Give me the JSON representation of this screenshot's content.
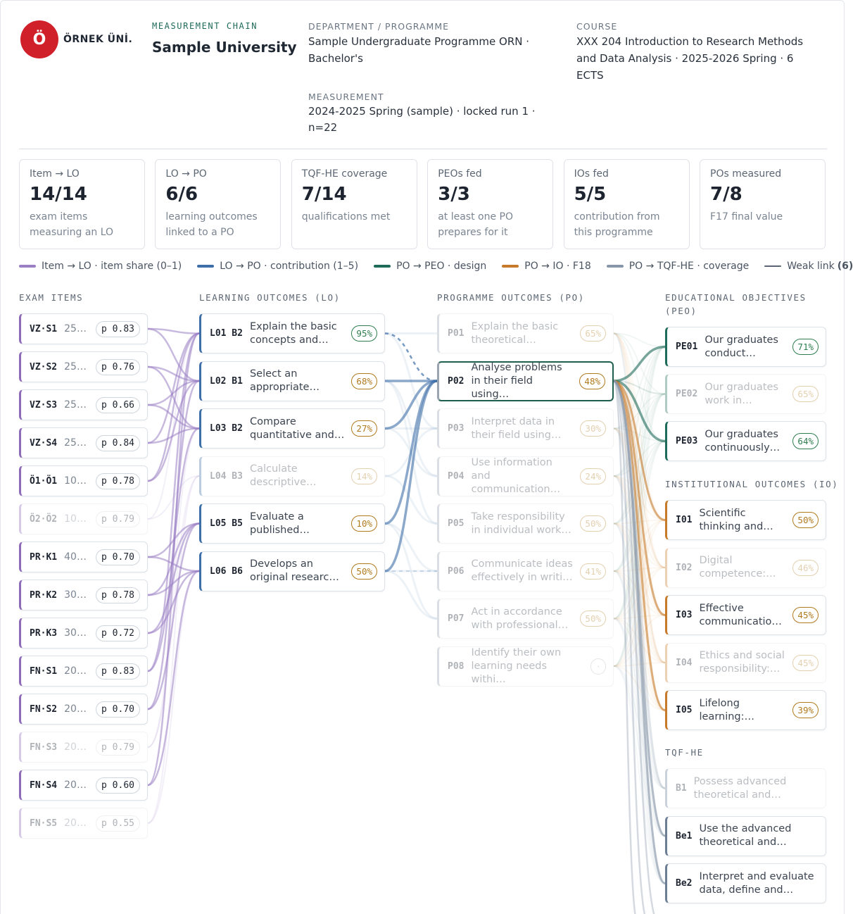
{
  "header": {
    "logo_letter": "Ö",
    "brand": "ÖRNEK ÜNİ.",
    "eyebrow": "MEASUREMENT CHAIN",
    "title": "Sample University",
    "department": {
      "label": "DEPARTMENT / PROGRAMME",
      "value": "Sample Undergraduate Programme ORN · Bachelor's"
    },
    "measurement": {
      "label": "MEASUREMENT",
      "value": "2024-2025 Spring (sample) · locked run 1 · n=22"
    },
    "course": {
      "label": "COURSE",
      "value": "XXX 204 Introduction to Research Methods and Data Analysis · 2025-2026 Spring · 6 ECTS"
    }
  },
  "stats": [
    {
      "label": "Item → LO",
      "value": "14/14",
      "note": "exam items measuring an LO"
    },
    {
      "label": "LO → PO",
      "value": "6/6",
      "note": "learning outcomes linked to a PO"
    },
    {
      "label": "TQF-HE coverage",
      "value": "7/14",
      "note": "qualifications met"
    },
    {
      "label": "PEOs fed",
      "value": "3/3",
      "note": "at least one PO prepares for it"
    },
    {
      "label": "IOs fed",
      "value": "5/5",
      "note": "contribution from this programme"
    },
    {
      "label": "POs measured",
      "value": "7/8",
      "note": "F17 final value"
    }
  ],
  "legend": [
    {
      "label": "Item → LO · item share (0–1)",
      "color": "#9b7fc4"
    },
    {
      "label": "LO → PO · contribution (1–5)",
      "color": "#3f6fa8"
    },
    {
      "label": "PO → PEO · design",
      "color": "#1f6b5a"
    },
    {
      "label": "PO → IO · F18",
      "color": "#c77a2a"
    },
    {
      "label": "PO → TQF-HE · coverage",
      "color": "#8796a8"
    },
    {
      "label": "Weak link",
      "count": "(6)",
      "color": "#5a6673"
    }
  ],
  "exam_items": {
    "heading": "EXAM ITEMS",
    "color": "#8e6bb8",
    "nodes": [
      {
        "code": "VZ·S1",
        "text": "25…",
        "badge": "p 0.83",
        "muted": false
      },
      {
        "code": "VZ·S2",
        "text": "25…",
        "badge": "p 0.76",
        "muted": false
      },
      {
        "code": "VZ·S3",
        "text": "25…",
        "badge": "p 0.66",
        "muted": false
      },
      {
        "code": "VZ·S4",
        "text": "25…",
        "badge": "p 0.84",
        "muted": false
      },
      {
        "code": "Ö1·Ö1",
        "text": "10…",
        "badge": "p 0.78",
        "muted": false
      },
      {
        "code": "Ö2·Ö2",
        "text": "10…",
        "badge": "p 0.79",
        "muted": true
      },
      {
        "code": "PR·K1",
        "text": "40…",
        "badge": "p 0.70",
        "muted": false
      },
      {
        "code": "PR·K2",
        "text": "30…",
        "badge": "p 0.78",
        "muted": false
      },
      {
        "code": "PR·K3",
        "text": "30…",
        "badge": "p 0.72",
        "muted": false
      },
      {
        "code": "FN·S1",
        "text": "20…",
        "badge": "p 0.83",
        "muted": false
      },
      {
        "code": "FN·S2",
        "text": "20…",
        "badge": "p 0.70",
        "muted": false
      },
      {
        "code": "FN·S3",
        "text": "20…",
        "badge": "p 0.79",
        "muted": true
      },
      {
        "code": "FN·S4",
        "text": "20…",
        "badge": "p 0.60",
        "muted": false
      },
      {
        "code": "FN·S5",
        "text": "20…",
        "badge": "p 0.55",
        "muted": true
      }
    ]
  },
  "learning_outcomes": {
    "heading": "LEARNING OUTCOMES (LO)",
    "color": "#3f6fa8",
    "nodes": [
      {
        "code": "L01 B2",
        "text": "Explain the basic concepts and…",
        "badge": "95%",
        "badge_color": "#2e7d4f",
        "muted": false
      },
      {
        "code": "L02 B1",
        "text": "Select an appropriate…",
        "badge": "68%",
        "badge_color": "#b07a1e",
        "muted": false
      },
      {
        "code": "L03 B2",
        "text": "Compare quantitative and…",
        "badge": "27%",
        "badge_color": "#b07a1e",
        "muted": false
      },
      {
        "code": "L04 B3",
        "text": "Calculate descriptive…",
        "badge": "14%",
        "badge_color": "#b07a1e",
        "muted": true
      },
      {
        "code": "L05 B5",
        "text": "Evaluate a published…",
        "badge": "10%",
        "badge_color": "#b07a1e",
        "muted": false
      },
      {
        "code": "L06 B6",
        "text": "Develops an original researc…",
        "badge": "50%",
        "badge_color": "#b07a1e",
        "muted": false
      }
    ]
  },
  "programme_outcomes": {
    "heading": "PROGRAMME OUTCOMES (PO)",
    "color": "#9aa5b1",
    "nodes": [
      {
        "code": "P01",
        "text": "Explain the basic theoretical…",
        "badge": "65%",
        "badge_color": "#b07a1e",
        "muted": true
      },
      {
        "code": "P02",
        "text": "Analyse problems in their field using…",
        "badge": "48%",
        "badge_color": "#b07a1e",
        "muted": false
      },
      {
        "code": "P03",
        "text": "Interpret data in their field using…",
        "badge": "30%",
        "badge_color": "#b07a1e",
        "muted": true
      },
      {
        "code": "P04",
        "text": "Use information and communication…",
        "badge": "24%",
        "badge_color": "#b07a1e",
        "muted": true
      },
      {
        "code": "P05",
        "text": "Take responsibility in individual work…",
        "badge": "50%",
        "badge_color": "#b07a1e",
        "muted": true
      },
      {
        "code": "P06",
        "text": "Communicate ideas effectively in writi…",
        "badge": "41%",
        "badge_color": "#b07a1e",
        "muted": true
      },
      {
        "code": "P07",
        "text": "Act in accordance with professional…",
        "badge": "50%",
        "badge_color": "#b07a1e",
        "muted": true
      },
      {
        "code": "P08",
        "text": "Identify their own learning needs withi…",
        "badge": "·",
        "badge_color": "#b0b8c2",
        "muted": true
      }
    ]
  },
  "educational_objectives": {
    "heading": "EDUCATIONAL OBJECTIVES (PEO)",
    "color": "#1f6b5a",
    "nodes": [
      {
        "code": "PE01",
        "text": "Our graduates conduct…",
        "badge": "71%",
        "badge_color": "#2e7d4f",
        "muted": false
      },
      {
        "code": "PE02",
        "text": "Our graduates work in…",
        "badge": "65%",
        "badge_color": "#b07a1e",
        "muted": true
      },
      {
        "code": "PE03",
        "text": "Our graduates continuously…",
        "badge": "64%",
        "badge_color": "#2e7d4f",
        "muted": false
      }
    ]
  },
  "institutional_outcomes": {
    "heading": "INSTITUTIONAL OUTCOMES (IO)",
    "color": "#c77a2a",
    "nodes": [
      {
        "code": "I01",
        "text": "Scientific thinking and…",
        "badge": "50%",
        "badge_color": "#b07a1e",
        "muted": false
      },
      {
        "code": "I02",
        "text": "Digital competence:…",
        "badge": "46%",
        "badge_color": "#b07a1e",
        "muted": true
      },
      {
        "code": "I03",
        "text": "Effective communicatio…",
        "badge": "45%",
        "badge_color": "#b07a1e",
        "muted": false
      },
      {
        "code": "I04",
        "text": "Ethics and social responsibility:…",
        "badge": "45%",
        "badge_color": "#b07a1e",
        "muted": true
      },
      {
        "code": "I05",
        "text": "Lifelong learning:…",
        "badge": "39%",
        "badge_color": "#b07a1e",
        "muted": false
      }
    ]
  },
  "tqf_he": {
    "heading": "TQF-HE",
    "color": "#6c7e93",
    "nodes": [
      {
        "code": "B1",
        "text": "Possess advanced theoretical and…",
        "muted": true
      },
      {
        "code": "Be1",
        "text": "Use the advanced theoretical and…",
        "muted": false
      },
      {
        "code": "Be2",
        "text": "Interpret and evaluate data, define and…",
        "muted": false
      }
    ]
  }
}
